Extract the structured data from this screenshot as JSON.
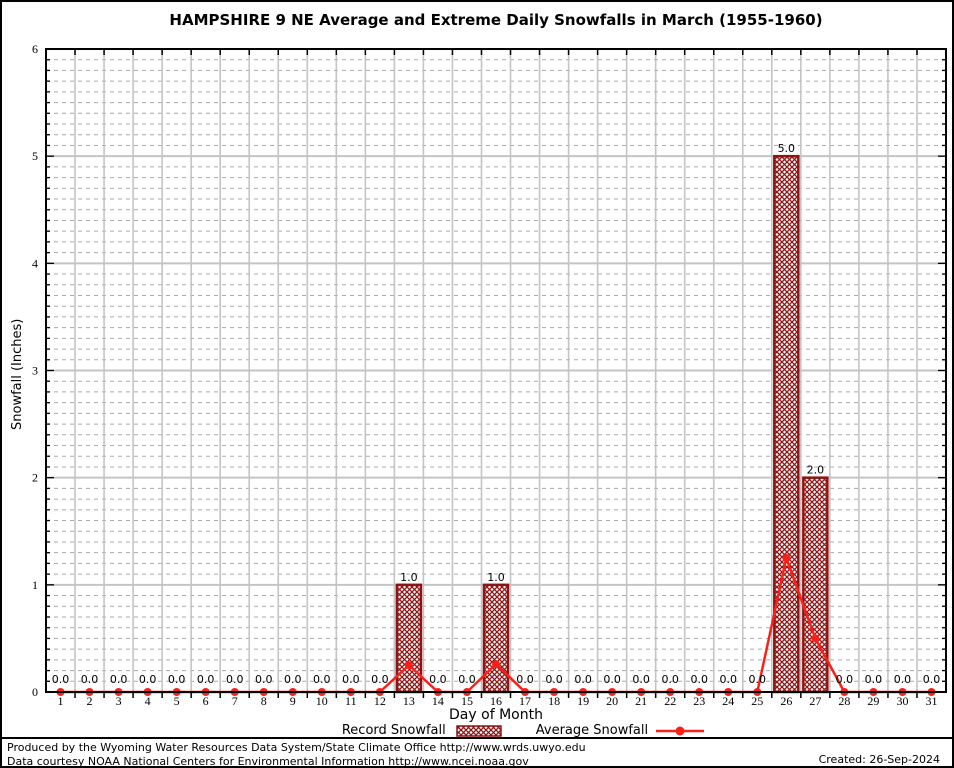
{
  "chart_data": {
    "type": "bar",
    "title": "HAMPSHIRE 9 NE Average and Extreme Daily Snowfalls in March (1955-1960)",
    "xlabel": "Day of Month",
    "ylabel": "Snowfall (Inches)",
    "x": [
      1,
      2,
      3,
      4,
      5,
      6,
      7,
      8,
      9,
      10,
      11,
      12,
      13,
      14,
      15,
      16,
      17,
      18,
      19,
      20,
      21,
      22,
      23,
      24,
      25,
      26,
      27,
      28,
      29,
      30,
      31
    ],
    "series": [
      {
        "name": "Record Snowfall",
        "type": "bar",
        "color": "#8e1414",
        "fill": "crosshatch",
        "values": [
          0,
          0,
          0,
          0,
          0,
          0,
          0,
          0,
          0,
          0,
          0,
          0,
          1.0,
          0,
          0,
          1.0,
          0,
          0,
          0,
          0,
          0,
          0,
          0,
          0,
          0,
          5.0,
          2.0,
          0,
          0,
          0,
          0
        ]
      },
      {
        "name": "Average Snowfall",
        "type": "line",
        "color": "#fa201a",
        "marker": "circle",
        "values": [
          0,
          0,
          0,
          0,
          0,
          0,
          0,
          0,
          0,
          0,
          0,
          0,
          0.25,
          0,
          0,
          0.26,
          0,
          0,
          0,
          0,
          0,
          0,
          0,
          0,
          0,
          1.25,
          0.5,
          0,
          0,
          0,
          0
        ]
      }
    ],
    "ylim": [
      0,
      6
    ],
    "yticks": [
      0,
      1,
      2,
      3,
      4,
      5,
      6
    ],
    "y_minor_step": 0.1,
    "grid": true,
    "bar_value_labels": true,
    "legend_position": "bottom"
  },
  "colors": {
    "bar": "#8e1414",
    "line": "#fa201a",
    "grid_major": "#c4c4c4",
    "grid_minor": "#ababab",
    "axis": "#000000",
    "text": "#000000"
  },
  "footer": {
    "line1": "Produced by the Wyoming Water Resources Data System/State Climate Office http://www.wrds.uwyo.edu",
    "line2": "Data courtesy NOAA National Centers for Environmental Information http://www.ncei.noaa.gov",
    "created": "Created: 26-Sep-2024"
  }
}
